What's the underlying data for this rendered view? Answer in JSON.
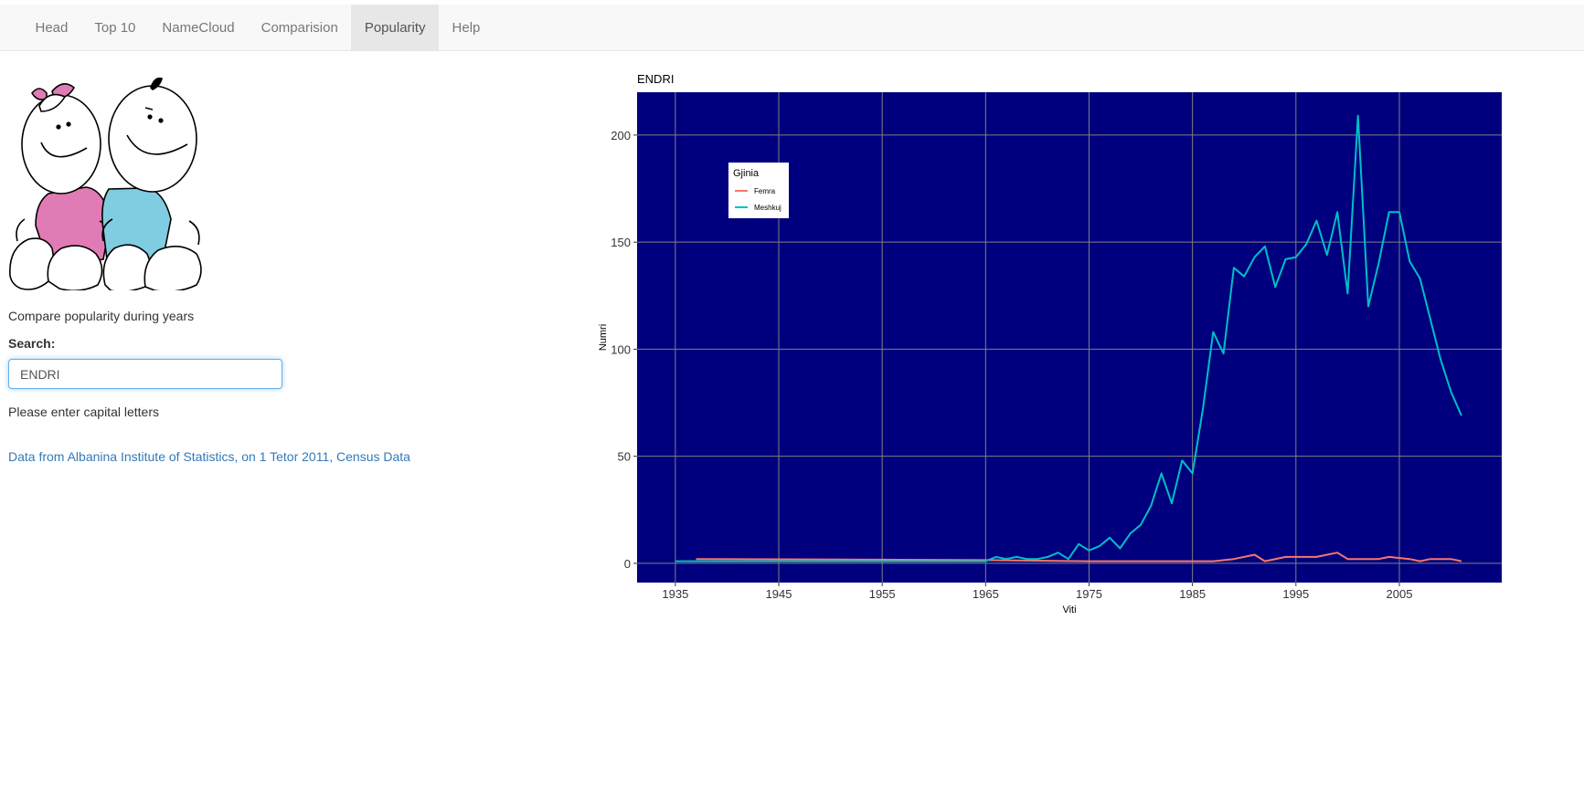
{
  "nav": {
    "items": [
      {
        "label": "Head",
        "active": false
      },
      {
        "label": "Top 10",
        "active": false
      },
      {
        "label": "NameCloud",
        "active": false
      },
      {
        "label": "Comparision",
        "active": false
      },
      {
        "label": "Popularity",
        "active": true
      },
      {
        "label": "Help",
        "active": false
      }
    ]
  },
  "sidebar": {
    "intro": "Compare popularity during years",
    "search_label": "Search:",
    "search_value": "ENDRI",
    "hint": "Please enter capital letters",
    "source_link": "Data from Albanina Institute of Statistics, on 1 Tetor 2011, Census Data",
    "image_icon": "babies-illustration"
  },
  "chart_data": {
    "type": "line",
    "title": "ENDRI",
    "xlabel": "Viti",
    "ylabel": "Numri",
    "xlim": [
      1931.3,
      2014.9
    ],
    "ylim": [
      -9,
      220
    ],
    "xticks": [
      1935,
      1945,
      1955,
      1965,
      1975,
      1985,
      1995,
      2005
    ],
    "yticks": [
      0,
      50,
      100,
      150,
      200
    ],
    "grid": true,
    "background": "#00007F",
    "legend": {
      "title": "Gjinia",
      "placement": "top-left"
    },
    "series": [
      {
        "name": "Femra",
        "color": "#F8766D",
        "x": [
          1937,
          1965,
          1975,
          1987,
          1989,
          1991,
          1992,
          1994,
          1997,
          1999,
          2000,
          2003,
          2004,
          2006,
          2007,
          2008,
          2010,
          2011
        ],
        "y": [
          2,
          1.5,
          1,
          1,
          2,
          4,
          1,
          3,
          3,
          5,
          2,
          2,
          3,
          2,
          1,
          2,
          2,
          1
        ]
      },
      {
        "name": "Meshkuj",
        "color": "#00BFC4",
        "x": [
          1935,
          1965,
          1966,
          1967,
          1968,
          1969,
          1970,
          1971,
          1972,
          1973,
          1974,
          1975,
          1976,
          1977,
          1978,
          1979,
          1980,
          1981,
          1982,
          1983,
          1984,
          1985,
          1986,
          1987,
          1988,
          1989,
          1990,
          1991,
          1992,
          1993,
          1994,
          1995,
          1996,
          1997,
          1998,
          1999,
          2000,
          2001,
          2002,
          2003,
          2004,
          2005,
          2006,
          2007,
          2008,
          2009,
          2010,
          2011
        ],
        "y": [
          1,
          1,
          3,
          2,
          3,
          2,
          2,
          3,
          5,
          2,
          9,
          6,
          8,
          12,
          7,
          14,
          18,
          27,
          42,
          28,
          48,
          42,
          72,
          108,
          98,
          138,
          134,
          143,
          148,
          129,
          142,
          143,
          149,
          160,
          144,
          164,
          126,
          209,
          120,
          140,
          164,
          164,
          141,
          133,
          114,
          95,
          80,
          69
        ]
      }
    ]
  }
}
